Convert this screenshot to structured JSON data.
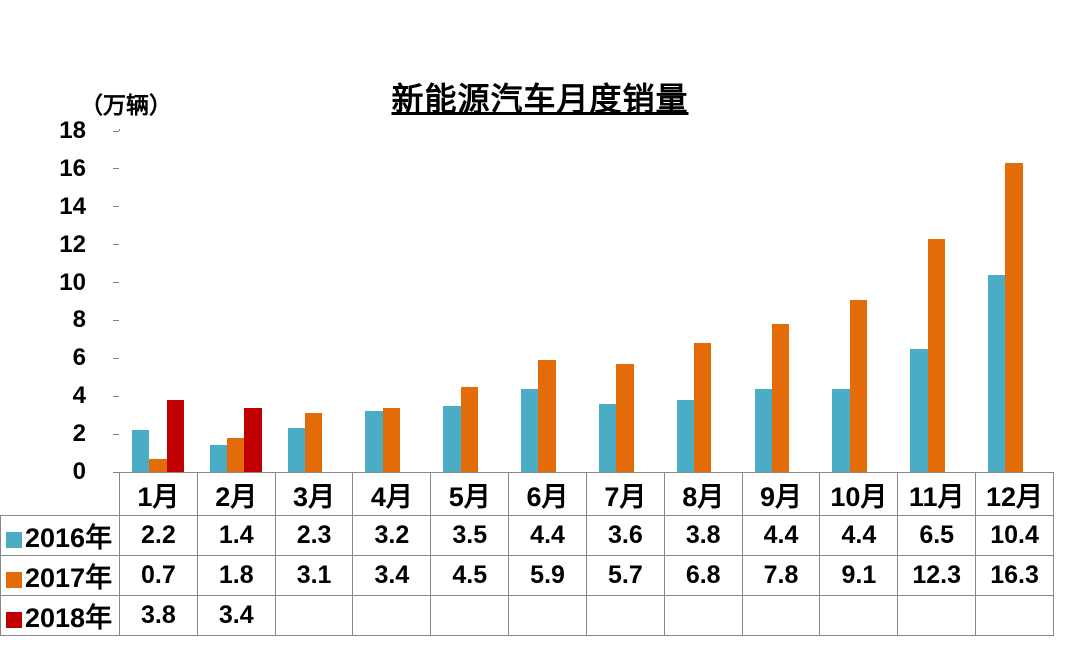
{
  "chart_data": {
    "type": "bar",
    "title": "新能源汽车月度销量",
    "unit_label": "（万辆）",
    "categories": [
      "1月",
      "2月",
      "3月",
      "4月",
      "5月",
      "6月",
      "7月",
      "8月",
      "9月",
      "10月",
      "11月",
      "12月"
    ],
    "series": [
      {
        "name": "2016年",
        "color": "#4BACC6",
        "values": [
          2.2,
          1.4,
          2.3,
          3.2,
          3.5,
          4.4,
          3.6,
          3.8,
          4.4,
          4.4,
          6.5,
          10.4
        ]
      },
      {
        "name": "2017年",
        "color": "#E36C09",
        "values": [
          0.7,
          1.8,
          3.1,
          3.4,
          4.5,
          5.9,
          5.7,
          6.8,
          7.8,
          9.1,
          12.3,
          16.3
        ]
      },
      {
        "name": "2018年",
        "color": "#C00000",
        "values": [
          3.8,
          3.4,
          null,
          null,
          null,
          null,
          null,
          null,
          null,
          null,
          null,
          null
        ]
      }
    ],
    "ylim": [
      0,
      18
    ],
    "yticks": [
      0,
      2,
      4,
      6,
      8,
      10,
      12,
      14,
      16,
      18
    ],
    "grid": false,
    "legend_position": "data-table-row-labels",
    "value_decimals": 1
  },
  "colors": {
    "series_2016": "#4BACC6",
    "series_2017": "#E36C09",
    "series_2018": "#C00000",
    "table_border": "#878787",
    "axis": "#808080",
    "text": "#000000",
    "background": "#FFFFFF"
  }
}
